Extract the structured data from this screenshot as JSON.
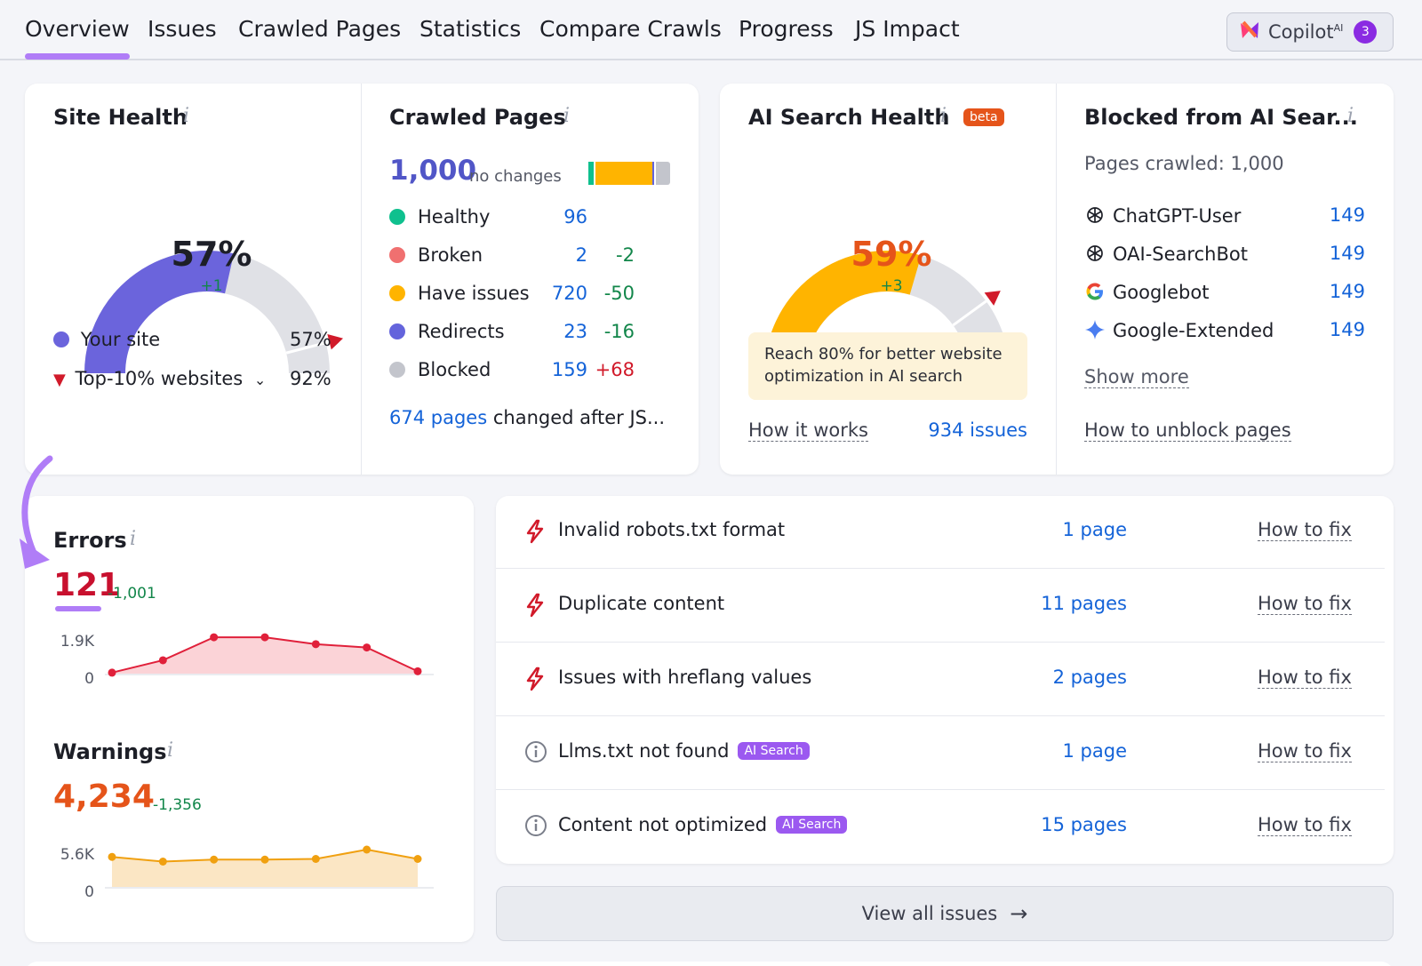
{
  "tabs": [
    "Overview",
    "Issues",
    "Crawled Pages",
    "Statistics",
    "Compare Crawls",
    "Progress",
    "JS Impact"
  ],
  "copilot": {
    "label": "Copilot",
    "sup": "AI",
    "count": "3"
  },
  "site_health": {
    "title": "Site Health",
    "value": "57%",
    "delta": "+1",
    "gauge_fraction": 0.57,
    "marker_fraction": 0.92,
    "your_site_label": "Your site",
    "your_site_value": "57%",
    "top_label": "Top-10% websites",
    "top_value": "92%"
  },
  "crawled": {
    "title": "Crawled Pages",
    "total": "1,000",
    "total_note": "no changes",
    "rows": [
      {
        "label": "Healthy",
        "value": "96",
        "delta": "",
        "color": "#0fc08e"
      },
      {
        "label": "Broken",
        "value": "2",
        "delta": "-2",
        "color": "#f07070"
      },
      {
        "label": "Have issues",
        "value": "720",
        "delta": "-50",
        "color": "#ffb400"
      },
      {
        "label": "Redirects",
        "value": "23",
        "delta": "-16",
        "color": "#6464dc"
      },
      {
        "label": "Blocked",
        "value": "159",
        "delta": "+68",
        "color": "#c3c5cc"
      }
    ],
    "js_link": "674 pages",
    "js_text": "changed after JS..."
  },
  "ai_health": {
    "title": "AI Search Health",
    "badge": "beta",
    "value": "59%",
    "delta": "+3",
    "gauge_fraction": 0.59,
    "marker_fraction": 0.8,
    "note": "Reach 80% for better website optimization in AI search",
    "how_it_works": "How it works",
    "issues": "934 issues"
  },
  "blocked": {
    "title": "Blocked from AI Sear...",
    "subtitle": "Pages crawled: 1,000",
    "bots": [
      {
        "name": "ChatGPT-User",
        "value": "149",
        "icon": "openai-icon"
      },
      {
        "name": "OAI-SearchBot",
        "value": "149",
        "icon": "openai-icon"
      },
      {
        "name": "Googlebot",
        "value": "149",
        "icon": "google-icon"
      },
      {
        "name": "Google-Extended",
        "value": "149",
        "icon": "gemini-icon"
      }
    ],
    "show_more": "Show more",
    "unblock": "How to unblock pages"
  },
  "errors": {
    "title": "Errors",
    "value": "121",
    "delta": "-1,001",
    "y_top": "1.9K",
    "y_bottom": "0",
    "chart_data": {
      "type": "area",
      "ylim": [
        0,
        1900
      ],
      "values": [
        50,
        680,
        1850,
        1850,
        1500,
        1330,
        120
      ],
      "color": "#e0203a",
      "fill": "#fbd3d7"
    }
  },
  "warnings": {
    "title": "Warnings",
    "value": "4,234",
    "delta": "-1,356",
    "y_top": "5.6K",
    "y_bottom": "0",
    "chart_data": {
      "type": "area",
      "ylim": [
        0,
        5600
      ],
      "values": [
        4500,
        3800,
        4100,
        4100,
        4200,
        5600,
        4200
      ],
      "color": "#f0a010",
      "fill": "#fbe6c4"
    }
  },
  "issues": [
    {
      "text": "Invalid robots.txt format",
      "pages": "1 page",
      "fix": "How to fix",
      "kind": "error",
      "ai": ""
    },
    {
      "text": "Duplicate content",
      "pages": "11 pages",
      "fix": "How to fix",
      "kind": "error",
      "ai": ""
    },
    {
      "text": "Issues with hreflang values",
      "pages": "2 pages",
      "fix": "How to fix",
      "kind": "error",
      "ai": ""
    },
    {
      "text": "Llms.txt not found",
      "pages": "1 page",
      "fix": "How to fix",
      "kind": "notice",
      "ai": "AI Search"
    },
    {
      "text": "Content not optimized",
      "pages": "15 pages",
      "fix": "How to fix",
      "kind": "notice",
      "ai": "AI Search"
    }
  ],
  "view_all": "View all issues"
}
